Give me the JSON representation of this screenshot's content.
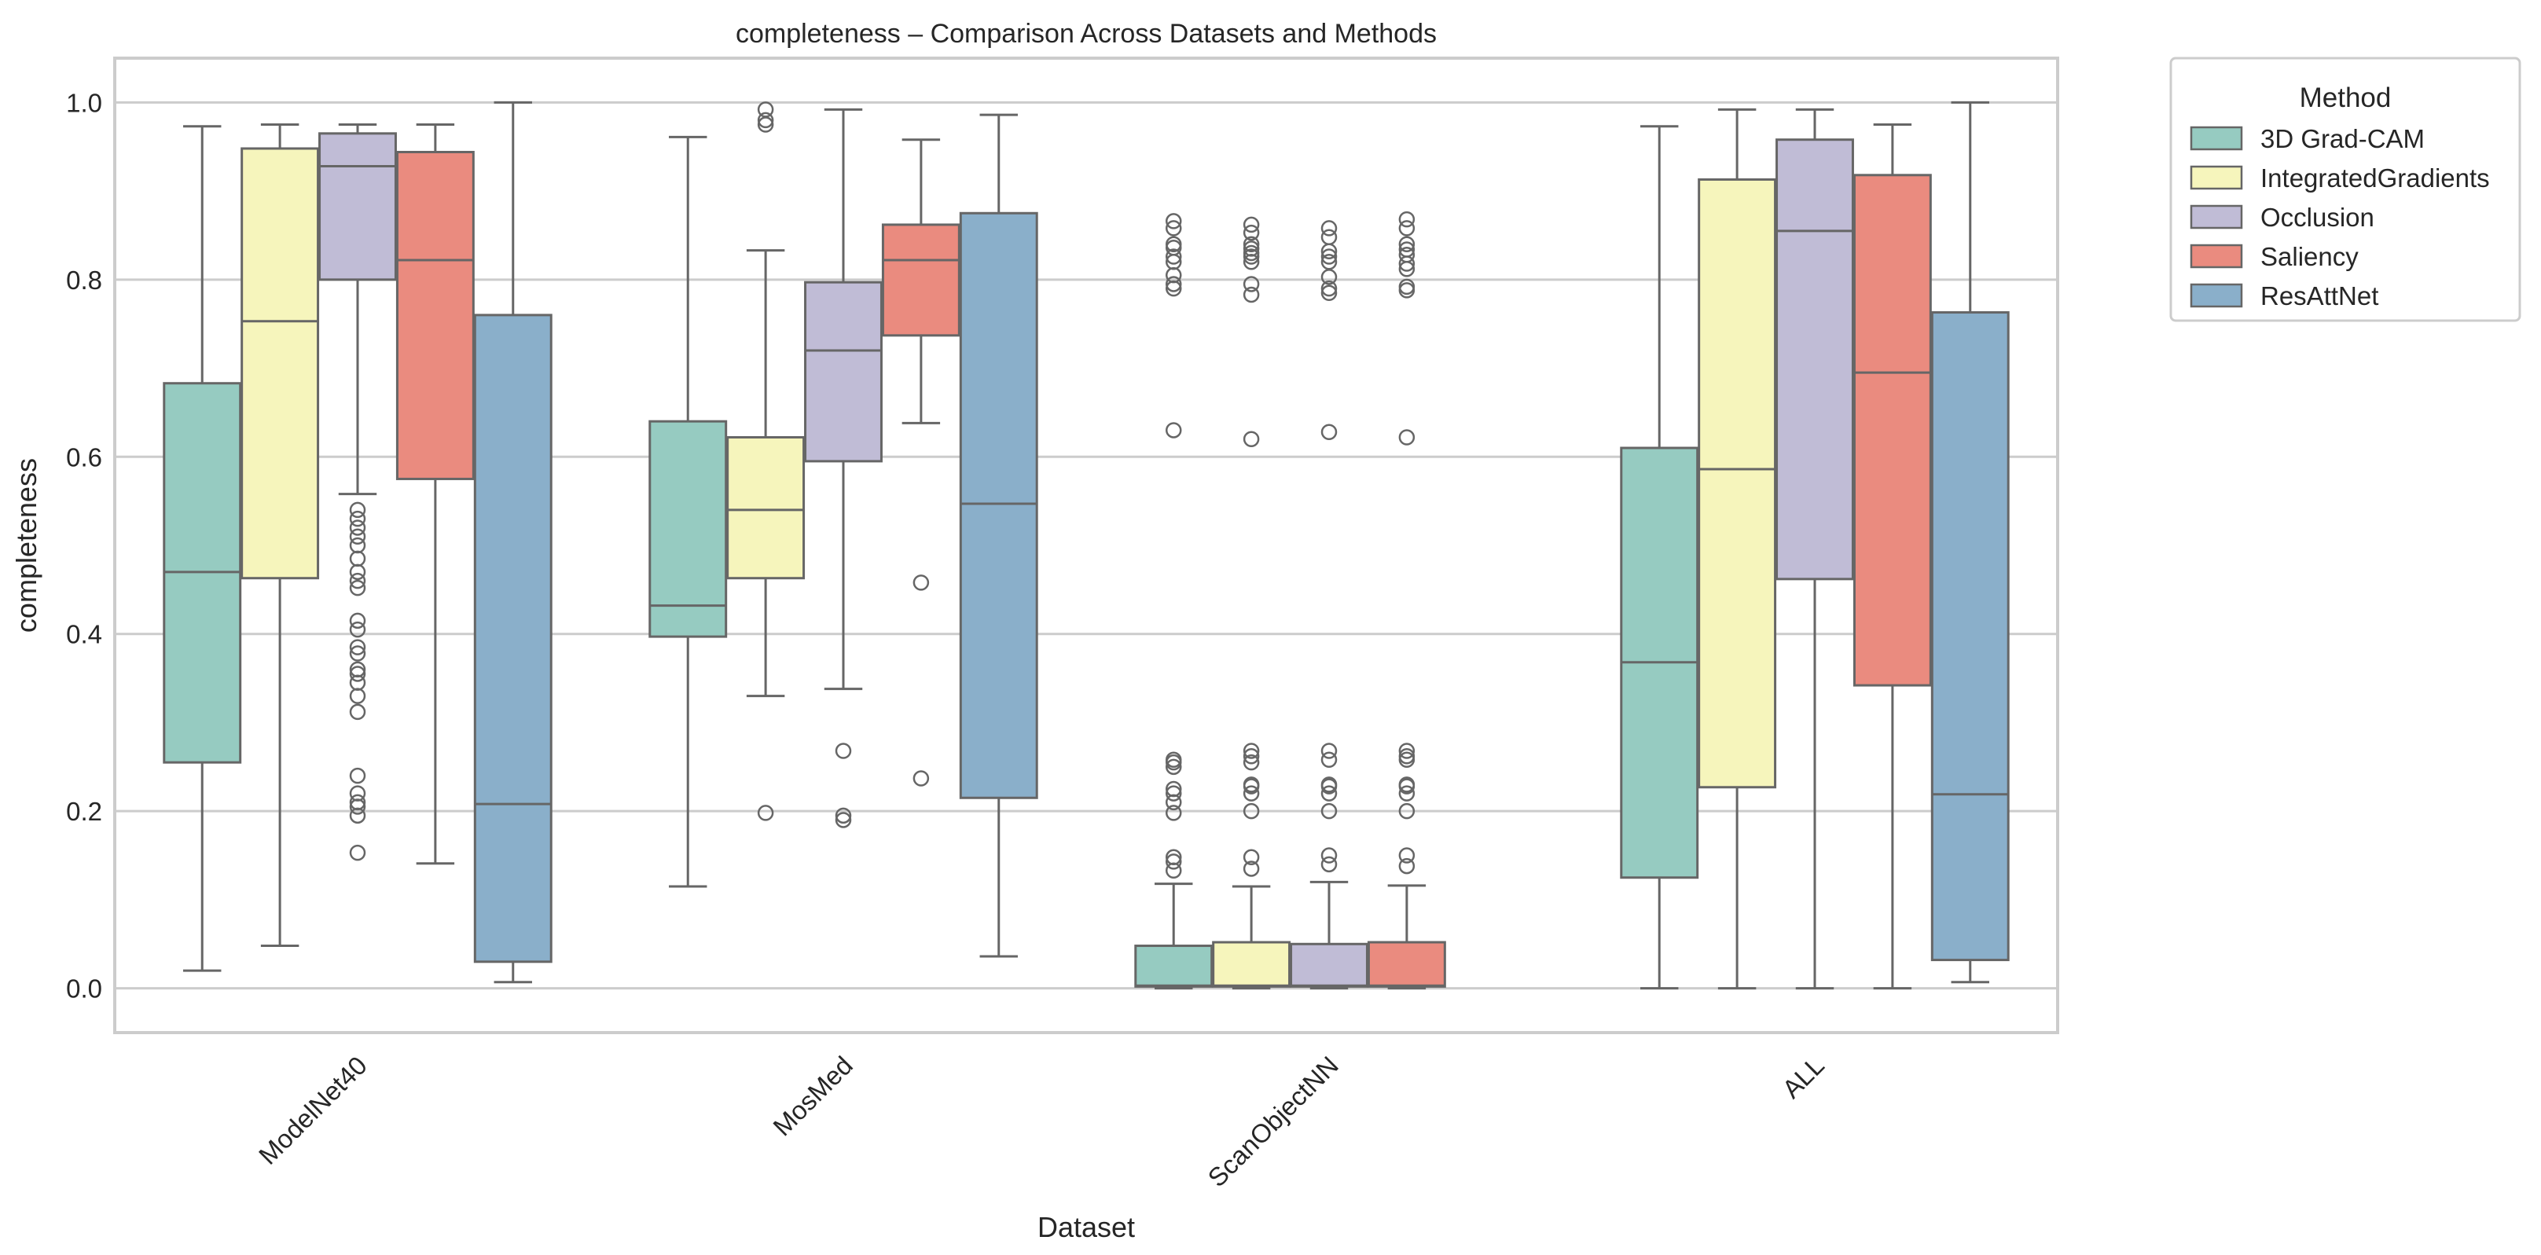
{
  "chart_data": {
    "type": "boxplot",
    "title": "completeness – Comparison Across Datasets and Methods",
    "xlabel": "Dataset",
    "ylabel": "completeness",
    "ylim": [
      -0.05,
      1.05
    ],
    "yticks": [
      0.0,
      0.2,
      0.4,
      0.6,
      0.8,
      1.0
    ],
    "ytick_labels": [
      "0.0",
      "0.2",
      "0.4",
      "0.6",
      "0.8",
      "1.0"
    ],
    "grid": true,
    "legend_position": "outside-top-right",
    "legend_title": "Method",
    "categories": [
      "ModelNet40",
      "MosMed",
      "ScanObjectNN",
      "ALL"
    ],
    "series": [
      {
        "name": "3D Grad-CAM",
        "color": "#96cbc1",
        "boxes": [
          {
            "whislo": 0.02,
            "q1": 0.255,
            "med": 0.47,
            "q3": 0.683,
            "whishi": 0.973,
            "fliers": []
          },
          {
            "whislo": 0.115,
            "q1": 0.397,
            "med": 0.432,
            "q3": 0.64,
            "whishi": 0.961,
            "fliers": []
          },
          {
            "whislo": 0.0,
            "q1": 0.002,
            "med": 0.003,
            "q3": 0.048,
            "whishi": 0.118,
            "fliers": [
              0.133,
              0.143,
              0.148,
              0.198,
              0.21,
              0.22,
              0.225,
              0.25,
              0.255,
              0.258,
              0.63,
              0.79,
              0.795,
              0.805,
              0.82,
              0.826,
              0.836,
              0.84,
              0.858,
              0.866
            ]
          },
          {
            "whislo": 0.0,
            "q1": 0.125,
            "med": 0.368,
            "q3": 0.61,
            "whishi": 0.973,
            "fliers": []
          }
        ]
      },
      {
        "name": "IntegratedGradients",
        "color": "#f6f5bc",
        "boxes": [
          {
            "whislo": 0.048,
            "q1": 0.463,
            "med": 0.753,
            "q3": 0.948,
            "whishi": 0.975,
            "fliers": []
          },
          {
            "whislo": 0.33,
            "q1": 0.463,
            "med": 0.54,
            "q3": 0.622,
            "whishi": 0.833,
            "fliers": [
              0.198,
              0.975,
              0.98,
              0.992
            ]
          },
          {
            "whislo": 0.0,
            "q1": 0.002,
            "med": 0.003,
            "q3": 0.052,
            "whishi": 0.115,
            "fliers": [
              0.135,
              0.148,
              0.2,
              0.22,
              0.228,
              0.23,
              0.255,
              0.262,
              0.268,
              0.62,
              0.783,
              0.795,
              0.82,
              0.826,
              0.83,
              0.835,
              0.84,
              0.853,
              0.862
            ]
          },
          {
            "whislo": 0.0,
            "q1": 0.227,
            "med": 0.586,
            "q3": 0.913,
            "whishi": 0.992,
            "fliers": []
          }
        ]
      },
      {
        "name": "Occlusion",
        "color": "#c0bcd6",
        "boxes": [
          {
            "whislo": 0.558,
            "q1": 0.8,
            "med": 0.928,
            "q3": 0.965,
            "whishi": 0.975,
            "fliers": [
              0.153,
              0.195,
              0.205,
              0.21,
              0.22,
              0.24,
              0.312,
              0.33,
              0.345,
              0.355,
              0.36,
              0.378,
              0.385,
              0.405,
              0.415,
              0.452,
              0.46,
              0.47,
              0.485,
              0.5,
              0.51,
              0.52,
              0.53,
              0.54
            ]
          },
          {
            "whislo": 0.338,
            "q1": 0.595,
            "med": 0.72,
            "q3": 0.797,
            "whishi": 0.992,
            "fliers": [
              0.19,
              0.195,
              0.268
            ]
          },
          {
            "whislo": 0.0,
            "q1": 0.002,
            "med": 0.003,
            "q3": 0.05,
            "whishi": 0.12,
            "fliers": [
              0.14,
              0.15,
              0.2,
              0.22,
              0.228,
              0.23,
              0.258,
              0.268,
              0.628,
              0.785,
              0.79,
              0.803,
              0.82,
              0.826,
              0.832,
              0.848,
              0.858
            ]
          },
          {
            "whislo": 0.0,
            "q1": 0.462,
            "med": 0.855,
            "q3": 0.958,
            "whishi": 0.992,
            "fliers": []
          }
        ]
      },
      {
        "name": "Saliency",
        "color": "#ea8b7f",
        "boxes": [
          {
            "whislo": 0.141,
            "q1": 0.575,
            "med": 0.822,
            "q3": 0.944,
            "whishi": 0.975,
            "fliers": []
          },
          {
            "whislo": 0.638,
            "q1": 0.737,
            "med": 0.822,
            "q3": 0.862,
            "whishi": 0.958,
            "fliers": [
              0.237,
              0.458
            ]
          },
          {
            "whislo": 0.0,
            "q1": 0.002,
            "med": 0.003,
            "q3": 0.052,
            "whishi": 0.116,
            "fliers": [
              0.138,
              0.15,
              0.2,
              0.22,
              0.228,
              0.23,
              0.258,
              0.262,
              0.268,
              0.622,
              0.788,
              0.792,
              0.812,
              0.818,
              0.828,
              0.834,
              0.84,
              0.858,
              0.868
            ]
          },
          {
            "whislo": 0.0,
            "q1": 0.342,
            "med": 0.695,
            "q3": 0.918,
            "whishi": 0.975,
            "fliers": []
          }
        ]
      },
      {
        "name": "ResAttNet",
        "color": "#8aafca",
        "boxes": [
          {
            "whislo": 0.007,
            "q1": 0.03,
            "med": 0.208,
            "q3": 0.76,
            "whishi": 1.0,
            "fliers": []
          },
          {
            "whislo": 0.036,
            "q1": 0.215,
            "med": 0.547,
            "q3": 0.875,
            "whishi": 0.986,
            "fliers": []
          },
          null,
          {
            "whislo": 0.007,
            "q1": 0.032,
            "med": 0.219,
            "q3": 0.763,
            "whishi": 1.0,
            "fliers": []
          }
        ]
      }
    ]
  }
}
